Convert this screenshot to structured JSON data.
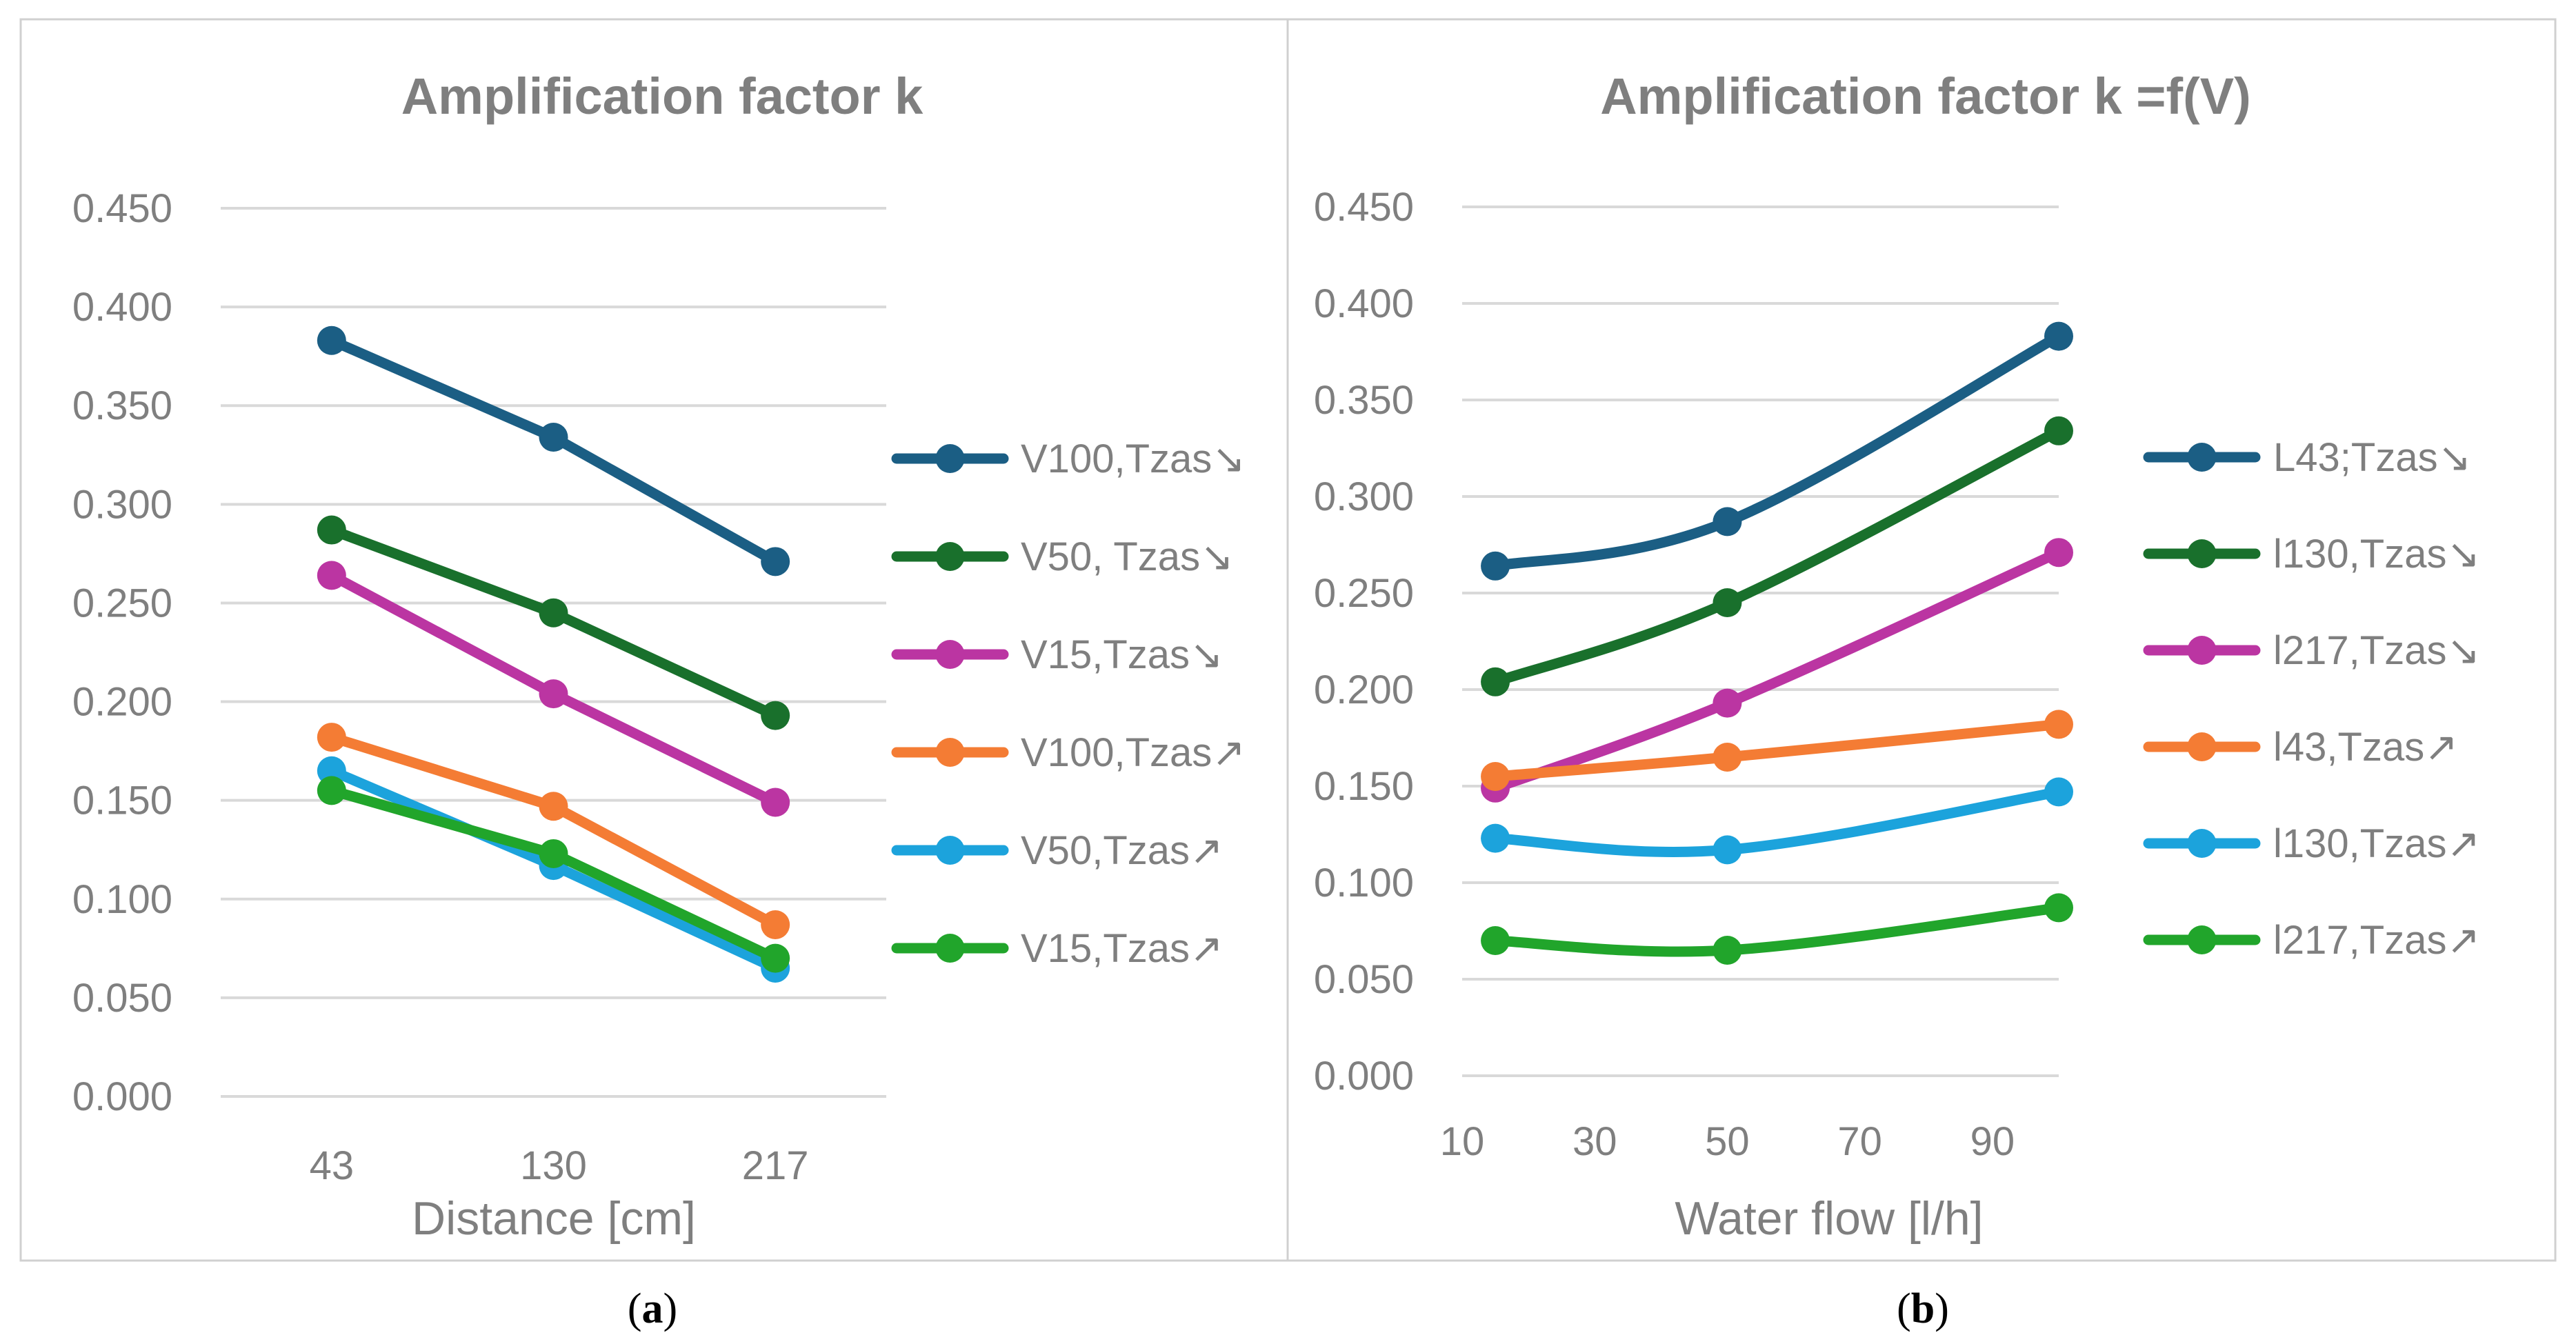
{
  "chart_data": [
    {
      "type": "line",
      "title": "Amplification factor k",
      "xlabel": "Distance [cm]",
      "ylabel": "",
      "caption": "a",
      "x_kind": "category",
      "categories": [
        "43",
        "130",
        "217"
      ],
      "ylim": [
        0,
        0.45
      ],
      "yticks": [
        "0.000",
        "0.050",
        "0.100",
        "0.150",
        "0.200",
        "0.250",
        "0.300",
        "0.350",
        "0.400",
        "0.450"
      ],
      "grid": true,
      "legend_position": "right",
      "series": [
        {
          "name": "V100,Tzas↘",
          "color": "#1b5e84",
          "values": [
            0.383,
            0.334,
            0.271
          ]
        },
        {
          "name": "V50, Tzas↘",
          "color": "#19702c",
          "values": [
            0.287,
            0.245,
            0.193
          ]
        },
        {
          "name": "V15,Tzas↘",
          "color": "#bb35a2",
          "values": [
            0.264,
            0.204,
            0.149
          ]
        },
        {
          "name": "V100,Tzas↗",
          "color": "#f47c34",
          "values": [
            0.182,
            0.147,
            0.087
          ]
        },
        {
          "name": "V50,Tzas↗",
          "color": "#1ca3dc",
          "values": [
            0.165,
            0.117,
            0.065
          ]
        },
        {
          "name": "V15,Tzas↗",
          "color": "#21a52b",
          "values": [
            0.155,
            0.123,
            0.07
          ]
        }
      ]
    },
    {
      "type": "line",
      "title": "Amplification factor k =f(V)",
      "xlabel": "Water flow [l/h]",
      "ylabel": "",
      "caption": "b",
      "x_kind": "numeric",
      "xlim": [
        10,
        100
      ],
      "xticks": [
        10,
        30,
        50,
        70,
        90
      ],
      "x": [
        15,
        50,
        100
      ],
      "ylim": [
        0,
        0.45
      ],
      "yticks": [
        "0.000",
        "0.050",
        "0.100",
        "0.150",
        "0.200",
        "0.250",
        "0.300",
        "0.350",
        "0.400",
        "0.450"
      ],
      "grid": true,
      "smooth": true,
      "legend_position": "right",
      "series": [
        {
          "name": "L43;Tzas↘",
          "color": "#1b5e84",
          "values": [
            0.264,
            0.287,
            0.383
          ]
        },
        {
          "name": "l130,Tzas↘",
          "color": "#19702c",
          "values": [
            0.204,
            0.245,
            0.334
          ]
        },
        {
          "name": "l217,Tzas↘",
          "color": "#bb35a2",
          "values": [
            0.149,
            0.193,
            0.271
          ]
        },
        {
          "name": "l43,Tzas↗",
          "color": "#f47c34",
          "values": [
            0.155,
            0.165,
            0.182
          ]
        },
        {
          "name": "l130,Tzas↗",
          "color": "#1ca3dc",
          "values": [
            0.123,
            0.117,
            0.147
          ]
        },
        {
          "name": "l217,Tzas↗",
          "color": "#21a52b",
          "values": [
            0.07,
            0.065,
            0.087
          ]
        }
      ]
    }
  ]
}
